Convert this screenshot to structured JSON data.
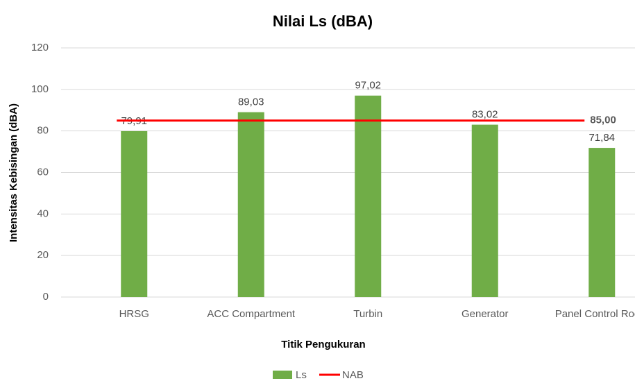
{
  "chart_data": {
    "type": "bar",
    "title": "Nilai Ls (dBA)",
    "x_label": "Titik Pengukuran",
    "y_label": "Intensitas Kebisingan (dBA)",
    "categories": [
      "HRSG",
      "ACC Compartment",
      "Turbin",
      "Generator",
      "Panel Control Room"
    ],
    "series": [
      {
        "name": "Ls",
        "color": "#70ad47",
        "values": [
          79.91,
          89.03,
          97.02,
          83.02,
          71.84
        ],
        "value_labels": [
          "79,91",
          "89,03",
          "97,02",
          "83,02",
          "71,84"
        ]
      }
    ],
    "threshold": {
      "name": "NAB",
      "color": "#ff0000",
      "value": 85,
      "value_label": "85,00"
    },
    "ylim": [
      0,
      120
    ],
    "yticks": [
      0,
      20,
      40,
      60,
      80,
      100,
      120
    ],
    "grid": true
  }
}
